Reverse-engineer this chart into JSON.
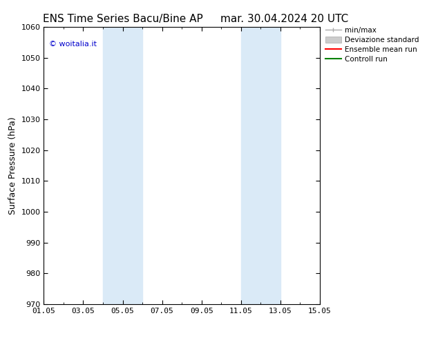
{
  "title_left": "ENS Time Series Bacu/Bine AP",
  "title_right": "mar. 30.04.2024 20 UTC",
  "ylabel": "Surface Pressure (hPa)",
  "ylim": [
    970,
    1060
  ],
  "yticks": [
    970,
    980,
    990,
    1000,
    1010,
    1020,
    1030,
    1040,
    1050,
    1060
  ],
  "xlim_start": 0,
  "xlim_end": 14,
  "xtick_labels": [
    "01.05",
    "03.05",
    "05.05",
    "07.05",
    "09.05",
    "11.05",
    "13.05",
    "15.05"
  ],
  "xtick_positions": [
    0,
    2,
    4,
    6,
    8,
    10,
    12,
    14
  ],
  "shaded_bands": [
    {
      "xmin": 3.0,
      "xmax": 5.0
    },
    {
      "xmin": 10.0,
      "xmax": 12.0
    }
  ],
  "band_color": "#daeaf7",
  "watermark": "© woitalia.it",
  "watermark_color": "#0000cc",
  "legend_labels": [
    "min/max",
    "Deviazione standard",
    "Ensemble mean run",
    "Controll run"
  ],
  "legend_line_colors": [
    "#aaaaaa",
    "#cccccc",
    "#ff0000",
    "#008000"
  ],
  "bg_color": "#ffffff",
  "title_fontsize": 11,
  "tick_fontsize": 8,
  "ylabel_fontsize": 9,
  "legend_fontsize": 7.5,
  "watermark_fontsize": 8
}
